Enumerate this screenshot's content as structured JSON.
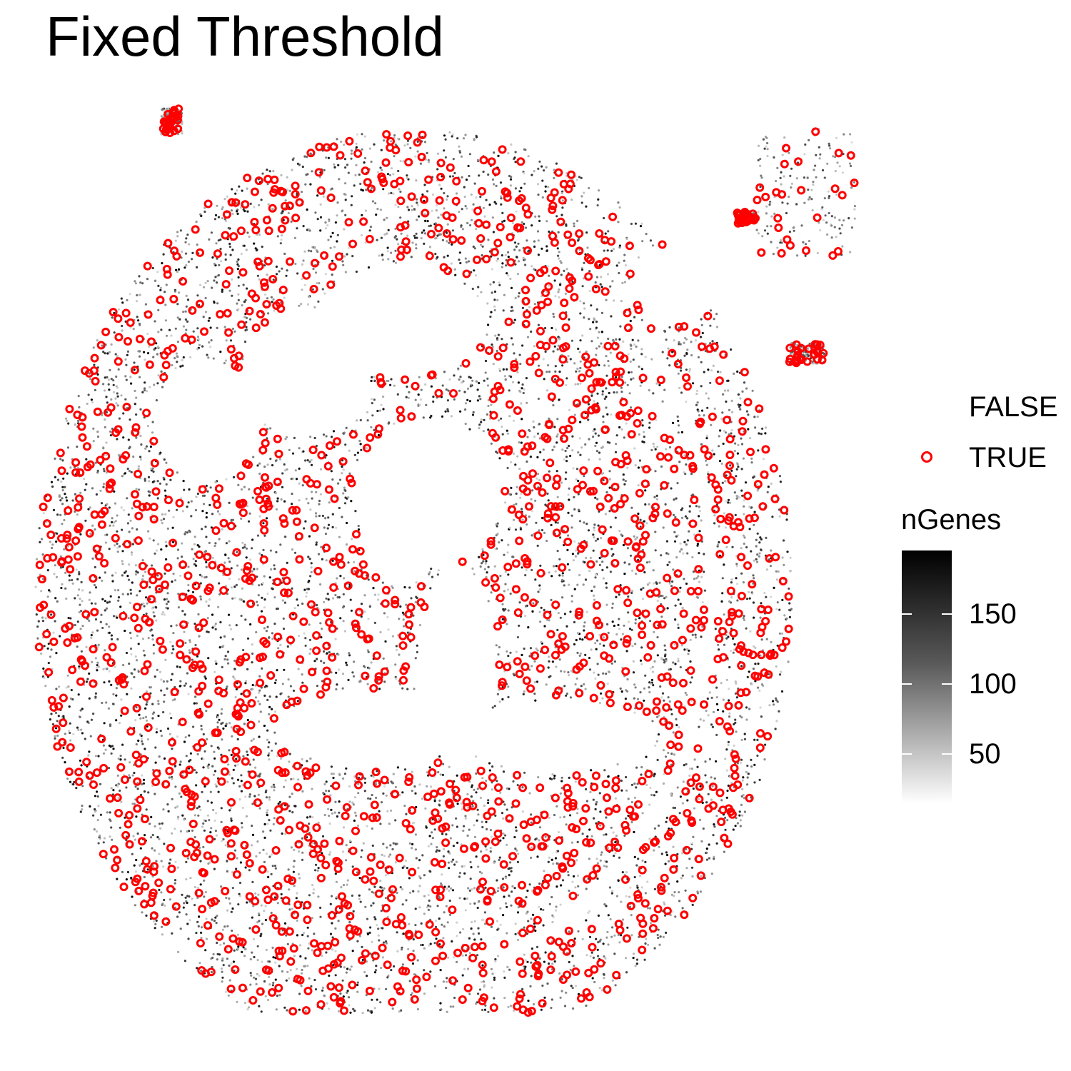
{
  "chart_data": {
    "type": "scatter",
    "title": "Fixed Threshold",
    "xlabel": "",
    "ylabel": "",
    "grid": false,
    "legend": {
      "position": "right",
      "shape_legend": {
        "title": "",
        "entries": [
          {
            "label": "FALSE",
            "marker": "none"
          },
          {
            "label": "TRUE",
            "marker": "open-circle",
            "color": "#ff0000"
          }
        ]
      },
      "color_legend": {
        "title": "nGenes",
        "type": "continuous",
        "low_color": "#ffffff",
        "high_color": "#000000",
        "range": [
          15,
          195
        ],
        "ticks": [
          50,
          100,
          150
        ]
      }
    },
    "series": [
      {
        "name": "FALSE",
        "marker": "small-dot",
        "color_by": "nGenes"
      },
      {
        "name": "TRUE",
        "marker": "open-circle",
        "color": "#ff0000"
      }
    ]
  }
}
